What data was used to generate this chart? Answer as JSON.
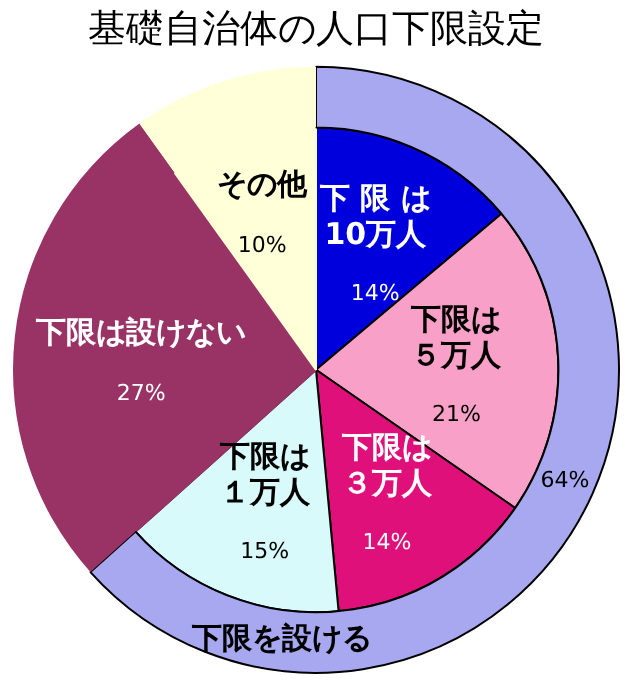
{
  "chart_data": {
    "type": "pie",
    "title": "基礎自治体の人口下限設定",
    "categories": [
      "下 限 は10万人",
      "下限は５万人",
      "下限は３万人",
      "下限は１万人",
      "下限は設けない",
      "その他"
    ],
    "values": [
      14,
      21,
      14,
      15,
      27,
      10
    ],
    "value_labels": [
      "14%",
      "21%",
      "14%",
      "15%",
      "27%",
      "10%"
    ],
    "colors": [
      "#0000dd",
      "#f8a0c8",
      "#e0107a",
      "#d8fafa",
      "#993366",
      "#ffffd8"
    ],
    "series": [
      {
        "name": "下限を設ける",
        "colors": [
          "#a8a8f0",
          null,
          null,
          null,
          "#993366",
          "#ffffd8"
        ],
        "values": [
          64,
          null,
          null,
          null,
          27,
          10
        ],
        "value_labels": [
          "64%",
          null,
          null,
          null,
          null,
          null
        ]
      }
    ]
  }
}
